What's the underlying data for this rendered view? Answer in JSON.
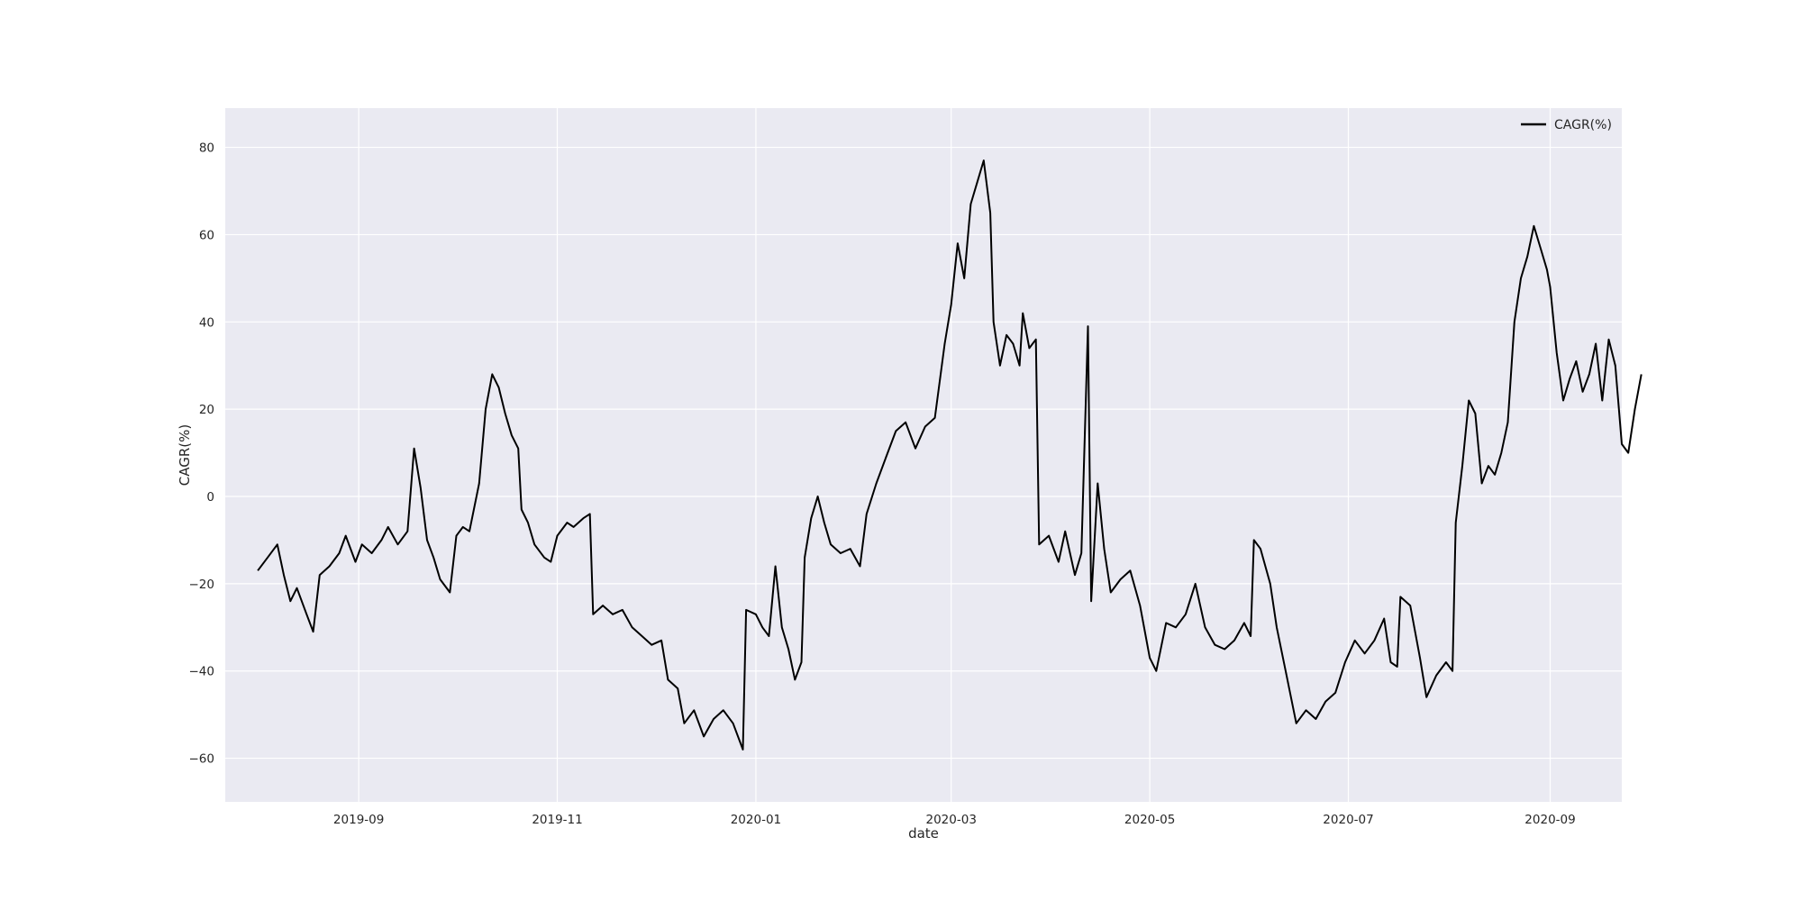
{
  "chart_data": {
    "type": "line",
    "title": "",
    "xlabel": "date",
    "ylabel": "CAGR(%)",
    "ylim": [
      -70,
      89
    ],
    "xlim": [
      "2019-07-22",
      "2020-09-23"
    ],
    "x_ticks": [
      "2019-09",
      "2019-11",
      "2020-01",
      "2020-03",
      "2020-05",
      "2020-07",
      "2020-09"
    ],
    "y_ticks": [
      80,
      60,
      40,
      20,
      0,
      -20,
      -40,
      -60
    ],
    "grid": true,
    "legend": "top-right",
    "colors": {
      "plot_background": "#eaeaf2",
      "grid": "#ffffff",
      "line": "#000000"
    },
    "series": [
      {
        "name": "CAGR(%)",
        "points": [
          [
            "2019-08-01",
            -17
          ],
          [
            "2019-08-04",
            -14
          ],
          [
            "2019-08-07",
            -11
          ],
          [
            "2019-08-09",
            -18
          ],
          [
            "2019-08-11",
            -24
          ],
          [
            "2019-08-13",
            -21
          ],
          [
            "2019-08-16",
            -27
          ],
          [
            "2019-08-18",
            -31
          ],
          [
            "2019-08-20",
            -18
          ],
          [
            "2019-08-23",
            -16
          ],
          [
            "2019-08-26",
            -13
          ],
          [
            "2019-08-28",
            -9
          ],
          [
            "2019-08-31",
            -15
          ],
          [
            "2019-09-02",
            -11
          ],
          [
            "2019-09-05",
            -13
          ],
          [
            "2019-09-08",
            -10
          ],
          [
            "2019-09-10",
            -7
          ],
          [
            "2019-09-13",
            -11
          ],
          [
            "2019-09-16",
            -8
          ],
          [
            "2019-09-18",
            11
          ],
          [
            "2019-09-20",
            2
          ],
          [
            "2019-09-22",
            -10
          ],
          [
            "2019-09-24",
            -14
          ],
          [
            "2019-09-26",
            -19
          ],
          [
            "2019-09-29",
            -22
          ],
          [
            "2019-10-01",
            -9
          ],
          [
            "2019-10-03",
            -7
          ],
          [
            "2019-10-05",
            -8
          ],
          [
            "2019-10-08",
            3
          ],
          [
            "2019-10-10",
            20
          ],
          [
            "2019-10-12",
            28
          ],
          [
            "2019-10-14",
            25
          ],
          [
            "2019-10-16",
            19
          ],
          [
            "2019-10-18",
            14
          ],
          [
            "2019-10-20",
            11
          ],
          [
            "2019-10-21",
            -3
          ],
          [
            "2019-10-23",
            -6
          ],
          [
            "2019-10-25",
            -11
          ],
          [
            "2019-10-28",
            -14
          ],
          [
            "2019-10-30",
            -15
          ],
          [
            "2019-11-01",
            -9
          ],
          [
            "2019-11-04",
            -6
          ],
          [
            "2019-11-06",
            -7
          ],
          [
            "2019-11-09",
            -5
          ],
          [
            "2019-11-11",
            -4
          ],
          [
            "2019-11-12",
            -27
          ],
          [
            "2019-11-15",
            -25
          ],
          [
            "2019-11-18",
            -27
          ],
          [
            "2019-11-21",
            -26
          ],
          [
            "2019-11-24",
            -30
          ],
          [
            "2019-11-27",
            -32
          ],
          [
            "2019-11-30",
            -34
          ],
          [
            "2019-12-03",
            -33
          ],
          [
            "2019-12-05",
            -42
          ],
          [
            "2019-12-08",
            -44
          ],
          [
            "2019-12-10",
            -52
          ],
          [
            "2019-12-13",
            -49
          ],
          [
            "2019-12-16",
            -55
          ],
          [
            "2019-12-19",
            -51
          ],
          [
            "2019-12-22",
            -49
          ],
          [
            "2019-12-25",
            -52
          ],
          [
            "2019-12-28",
            -58
          ],
          [
            "2019-12-29",
            -26
          ],
          [
            "2020-01-01",
            -27
          ],
          [
            "2020-01-03",
            -30
          ],
          [
            "2020-01-05",
            -32
          ],
          [
            "2020-01-07",
            -16
          ],
          [
            "2020-01-09",
            -30
          ],
          [
            "2020-01-11",
            -35
          ],
          [
            "2020-01-13",
            -42
          ],
          [
            "2020-01-15",
            -38
          ],
          [
            "2020-01-16",
            -14
          ],
          [
            "2020-01-18",
            -5
          ],
          [
            "2020-01-20",
            0
          ],
          [
            "2020-01-22",
            -6
          ],
          [
            "2020-01-24",
            -11
          ],
          [
            "2020-01-27",
            -13
          ],
          [
            "2020-01-30",
            -12
          ],
          [
            "2020-02-02",
            -16
          ],
          [
            "2020-02-04",
            -4
          ],
          [
            "2020-02-07",
            3
          ],
          [
            "2020-02-10",
            9
          ],
          [
            "2020-02-13",
            15
          ],
          [
            "2020-02-16",
            17
          ],
          [
            "2020-02-19",
            11
          ],
          [
            "2020-02-22",
            16
          ],
          [
            "2020-02-25",
            18
          ],
          [
            "2020-02-28",
            35
          ],
          [
            "2020-03-01",
            44
          ],
          [
            "2020-03-03",
            58
          ],
          [
            "2020-03-05",
            50
          ],
          [
            "2020-03-07",
            67
          ],
          [
            "2020-03-09",
            72
          ],
          [
            "2020-03-11",
            77
          ],
          [
            "2020-03-13",
            65
          ],
          [
            "2020-03-14",
            40
          ],
          [
            "2020-03-16",
            30
          ],
          [
            "2020-03-18",
            37
          ],
          [
            "2020-03-20",
            35
          ],
          [
            "2020-03-22",
            30
          ],
          [
            "2020-03-23",
            42
          ],
          [
            "2020-03-25",
            34
          ],
          [
            "2020-03-27",
            36
          ],
          [
            "2020-03-28",
            -11
          ],
          [
            "2020-03-31",
            -9
          ],
          [
            "2020-04-03",
            -15
          ],
          [
            "2020-04-05",
            -8
          ],
          [
            "2020-04-08",
            -18
          ],
          [
            "2020-04-10",
            -13
          ],
          [
            "2020-04-12",
            39
          ],
          [
            "2020-04-13",
            -24
          ],
          [
            "2020-04-15",
            3
          ],
          [
            "2020-04-17",
            -12
          ],
          [
            "2020-04-19",
            -22
          ],
          [
            "2020-04-22",
            -19
          ],
          [
            "2020-04-25",
            -17
          ],
          [
            "2020-04-28",
            -25
          ],
          [
            "2020-05-01",
            -37
          ],
          [
            "2020-05-03",
            -40
          ],
          [
            "2020-05-06",
            -29
          ],
          [
            "2020-05-09",
            -30
          ],
          [
            "2020-05-12",
            -27
          ],
          [
            "2020-05-15",
            -20
          ],
          [
            "2020-05-18",
            -30
          ],
          [
            "2020-05-21",
            -34
          ],
          [
            "2020-05-24",
            -35
          ],
          [
            "2020-05-27",
            -33
          ],
          [
            "2020-05-30",
            -29
          ],
          [
            "2020-06-01",
            -32
          ],
          [
            "2020-06-02",
            -10
          ],
          [
            "2020-06-04",
            -12
          ],
          [
            "2020-06-07",
            -20
          ],
          [
            "2020-06-09",
            -30
          ],
          [
            "2020-06-12",
            -41
          ],
          [
            "2020-06-15",
            -52
          ],
          [
            "2020-06-18",
            -49
          ],
          [
            "2020-06-21",
            -51
          ],
          [
            "2020-06-24",
            -47
          ],
          [
            "2020-06-27",
            -45
          ],
          [
            "2020-06-30",
            -38
          ],
          [
            "2020-07-03",
            -33
          ],
          [
            "2020-07-06",
            -36
          ],
          [
            "2020-07-09",
            -33
          ],
          [
            "2020-07-12",
            -28
          ],
          [
            "2020-07-14",
            -38
          ],
          [
            "2020-07-16",
            -39
          ],
          [
            "2020-07-17",
            -23
          ],
          [
            "2020-07-20",
            -25
          ],
          [
            "2020-07-23",
            -37
          ],
          [
            "2020-07-25",
            -46
          ],
          [
            "2020-07-28",
            -41
          ],
          [
            "2020-07-31",
            -38
          ],
          [
            "2020-08-02",
            -40
          ],
          [
            "2020-08-03",
            -6
          ],
          [
            "2020-08-05",
            7
          ],
          [
            "2020-08-07",
            22
          ],
          [
            "2020-08-09",
            19
          ],
          [
            "2020-08-11",
            3
          ],
          [
            "2020-08-13",
            7
          ],
          [
            "2020-08-15",
            5
          ],
          [
            "2020-08-17",
            10
          ],
          [
            "2020-08-19",
            17
          ],
          [
            "2020-08-21",
            40
          ],
          [
            "2020-08-23",
            50
          ],
          [
            "2020-08-25",
            55
          ],
          [
            "2020-08-27",
            62
          ],
          [
            "2020-08-29",
            57
          ],
          [
            "2020-08-31",
            52
          ],
          [
            "2020-09-01",
            48
          ],
          [
            "2020-09-03",
            33
          ],
          [
            "2020-09-05",
            22
          ],
          [
            "2020-09-07",
            27
          ],
          [
            "2020-09-09",
            31
          ],
          [
            "2020-09-11",
            24
          ],
          [
            "2020-09-13",
            28
          ],
          [
            "2020-09-15",
            35
          ],
          [
            "2020-09-17",
            22
          ],
          [
            "2020-09-19",
            36
          ],
          [
            "2020-09-21",
            30
          ],
          [
            "2020-09-23",
            12
          ],
          [
            "2020-09-25",
            10
          ],
          [
            "2020-09-27",
            20
          ],
          [
            "2020-09-29",
            28
          ]
        ]
      }
    ]
  }
}
